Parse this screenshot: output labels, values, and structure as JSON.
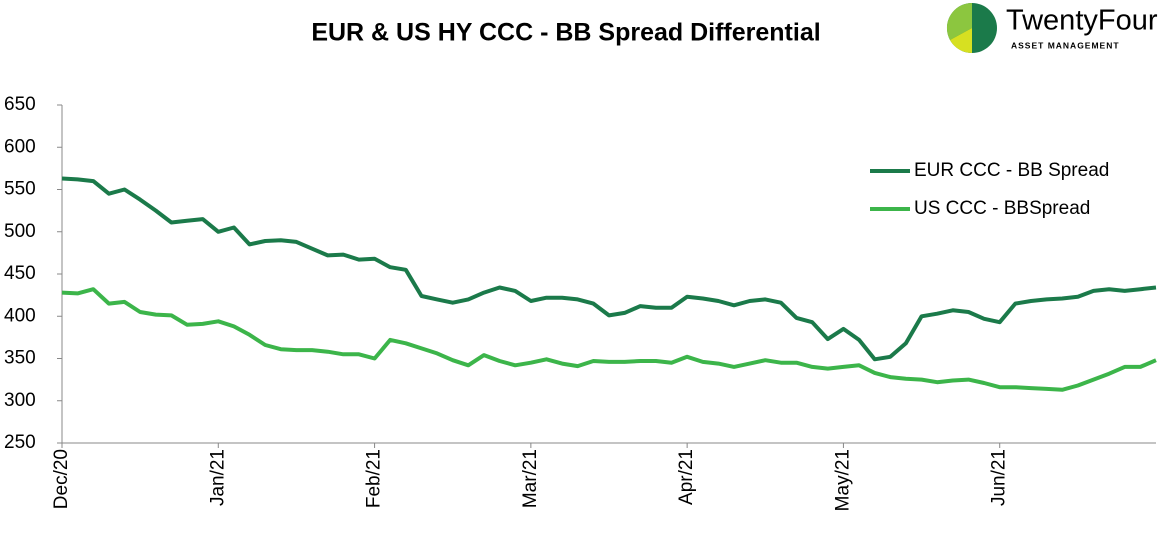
{
  "logo": {
    "name": "TwentyFour",
    "tagline": "ASSET MANAGEMENT"
  },
  "chart_data": {
    "type": "line",
    "title": "EUR & US HY CCC - BB Spread Differential",
    "categories": [
      "Dec/20",
      null,
      null,
      null,
      null,
      null,
      null,
      null,
      null,
      null,
      "Jan/21",
      null,
      null,
      null,
      null,
      null,
      null,
      null,
      null,
      null,
      "Feb/21",
      null,
      null,
      null,
      null,
      null,
      null,
      null,
      null,
      null,
      "Mar/21",
      null,
      null,
      null,
      null,
      null,
      null,
      null,
      null,
      null,
      "Apr/21",
      null,
      null,
      null,
      null,
      null,
      null,
      null,
      null,
      null,
      "May/21",
      null,
      null,
      null,
      null,
      null,
      null,
      null,
      null,
      null,
      "Jun/21",
      null,
      null,
      null,
      null,
      null,
      null,
      null,
      null,
      null,
      null
    ],
    "series": [
      {
        "name": "EUR CCC - BB Spread",
        "color": "#1b7a4a",
        "values": [
          563,
          562,
          560,
          545,
          550,
          538,
          525,
          511,
          513,
          515,
          500,
          505,
          485,
          489,
          490,
          488,
          480,
          472,
          473,
          467,
          468,
          458,
          455,
          424,
          420,
          416,
          420,
          428,
          434,
          430,
          418,
          422,
          422,
          420,
          415,
          401,
          404,
          412,
          410,
          410,
          423,
          421,
          418,
          413,
          418,
          420,
          416,
          398,
          393,
          373,
          385,
          372,
          349,
          352,
          368,
          400,
          403,
          407,
          405,
          397,
          393,
          415,
          418,
          420,
          421,
          423,
          430,
          432,
          430,
          432,
          434
        ]
      },
      {
        "name": "US CCC - BBSpread",
        "color": "#3cb54a",
        "values": [
          428,
          427,
          432,
          415,
          417,
          405,
          402,
          401,
          390,
          391,
          394,
          388,
          378,
          366,
          361,
          360,
          360,
          358,
          355,
          355,
          350,
          372,
          368,
          362,
          356,
          348,
          342,
          354,
          347,
          342,
          345,
          349,
          344,
          341,
          347,
          346,
          346,
          347,
          347,
          345,
          352,
          346,
          344,
          340,
          344,
          348,
          345,
          345,
          340,
          338,
          340,
          342,
          333,
          328,
          326,
          325,
          322,
          324,
          325,
          321,
          316,
          316,
          315,
          314,
          313,
          318,
          325,
          332,
          340,
          340,
          348
        ]
      }
    ],
    "ylim": [
      250,
      650
    ],
    "yticks": [
      250,
      300,
      350,
      400,
      450,
      500,
      550,
      600,
      650
    ],
    "grid": false,
    "legend": "upper-right"
  }
}
